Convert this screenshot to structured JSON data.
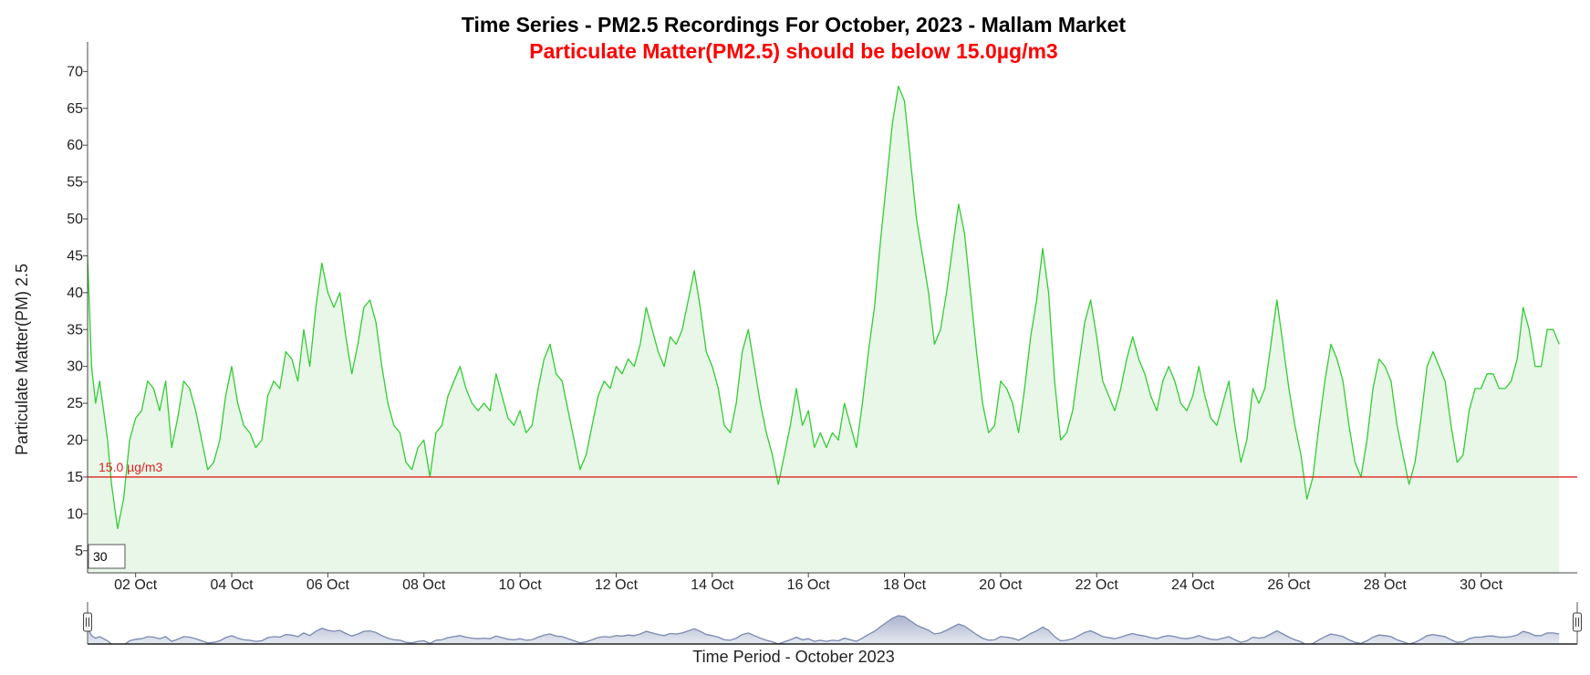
{
  "chart_data": {
    "type": "area",
    "title": "Time Series - PM2.5 Recordings For October, 2023 - Mallam Market",
    "subtitle": "Particulate Matter(PM2.5) should be below 15.0µg/m3",
    "xlabel": "Time Period - October 2023",
    "ylabel": "Particulate Matter(PM) 2.5",
    "x_start": "2023-10-01",
    "x_end": "2023-11-01",
    "x_ticks": [
      "02 Oct",
      "04 Oct",
      "06 Oct",
      "08 Oct",
      "10 Oct",
      "12 Oct",
      "14 Oct",
      "16 Oct",
      "18 Oct",
      "20 Oct",
      "22 Oct",
      "24 Oct",
      "26 Oct",
      "28 Oct",
      "30 Oct"
    ],
    "y_ticks": [
      5,
      10,
      15,
      20,
      25,
      30,
      35,
      40,
      45,
      50,
      55,
      60,
      65,
      70
    ],
    "ylim": [
      2,
      74
    ],
    "grid": false,
    "threshold": {
      "value": 15.0,
      "label": "15.0 µg/m3",
      "color": "#dd2222"
    },
    "rolling_period": "30",
    "series": [
      {
        "color": "#33cc33",
        "fill": "#e8f7e8",
        "points": [
          [
            "2023-10-01T00:00",
            45
          ],
          [
            "2023-10-01T02:00",
            30
          ],
          [
            "2023-10-01T04:00",
            25
          ],
          [
            "2023-10-01T06:00",
            28
          ],
          [
            "2023-10-01T08:00",
            24
          ],
          [
            "2023-10-01T10:00",
            20
          ],
          [
            "2023-10-01T12:00",
            14
          ],
          [
            "2023-10-01T15:00",
            8
          ],
          [
            "2023-10-01T18:00",
            12
          ],
          [
            "2023-10-01T21:00",
            20
          ],
          [
            "2023-10-02T00:00",
            23
          ],
          [
            "2023-10-02T03:00",
            24
          ],
          [
            "2023-10-02T06:00",
            28
          ],
          [
            "2023-10-02T09:00",
            27
          ],
          [
            "2023-10-02T12:00",
            24
          ],
          [
            "2023-10-02T15:00",
            28
          ],
          [
            "2023-10-02T18:00",
            19
          ],
          [
            "2023-10-02T21:00",
            23
          ],
          [
            "2023-10-03T00:00",
            28
          ],
          [
            "2023-10-03T03:00",
            27
          ],
          [
            "2023-10-03T06:00",
            24
          ],
          [
            "2023-10-03T09:00",
            20
          ],
          [
            "2023-10-03T12:00",
            16
          ],
          [
            "2023-10-03T15:00",
            17
          ],
          [
            "2023-10-03T18:00",
            20
          ],
          [
            "2023-10-03T21:00",
            26
          ],
          [
            "2023-10-04T00:00",
            30
          ],
          [
            "2023-10-04T03:00",
            25
          ],
          [
            "2023-10-04T06:00",
            22
          ],
          [
            "2023-10-04T09:00",
            21
          ],
          [
            "2023-10-04T12:00",
            19
          ],
          [
            "2023-10-04T15:00",
            20
          ],
          [
            "2023-10-04T18:00",
            26
          ],
          [
            "2023-10-04T21:00",
            28
          ],
          [
            "2023-10-05T00:00",
            27
          ],
          [
            "2023-10-05T03:00",
            32
          ],
          [
            "2023-10-05T06:00",
            31
          ],
          [
            "2023-10-05T09:00",
            28
          ],
          [
            "2023-10-05T12:00",
            35
          ],
          [
            "2023-10-05T15:00",
            30
          ],
          [
            "2023-10-05T18:00",
            38
          ],
          [
            "2023-10-05T21:00",
            44
          ],
          [
            "2023-10-06T00:00",
            40
          ],
          [
            "2023-10-06T03:00",
            38
          ],
          [
            "2023-10-06T06:00",
            40
          ],
          [
            "2023-10-06T09:00",
            34
          ],
          [
            "2023-10-06T12:00",
            29
          ],
          [
            "2023-10-06T15:00",
            33
          ],
          [
            "2023-10-06T18:00",
            38
          ],
          [
            "2023-10-06T21:00",
            39
          ],
          [
            "2023-10-07T00:00",
            36
          ],
          [
            "2023-10-07T03:00",
            30
          ],
          [
            "2023-10-07T06:00",
            25
          ],
          [
            "2023-10-07T09:00",
            22
          ],
          [
            "2023-10-07T12:00",
            21
          ],
          [
            "2023-10-07T15:00",
            17
          ],
          [
            "2023-10-07T18:00",
            16
          ],
          [
            "2023-10-07T21:00",
            19
          ],
          [
            "2023-10-08T00:00",
            20
          ],
          [
            "2023-10-08T03:00",
            15
          ],
          [
            "2023-10-08T06:00",
            21
          ],
          [
            "2023-10-08T09:00",
            22
          ],
          [
            "2023-10-08T12:00",
            26
          ],
          [
            "2023-10-08T15:00",
            28
          ],
          [
            "2023-10-08T18:00",
            30
          ],
          [
            "2023-10-08T21:00",
            27
          ],
          [
            "2023-10-09T00:00",
            25
          ],
          [
            "2023-10-09T03:00",
            24
          ],
          [
            "2023-10-09T06:00",
            25
          ],
          [
            "2023-10-09T09:00",
            24
          ],
          [
            "2023-10-09T12:00",
            29
          ],
          [
            "2023-10-09T15:00",
            26
          ],
          [
            "2023-10-09T18:00",
            23
          ],
          [
            "2023-10-09T21:00",
            22
          ],
          [
            "2023-10-10T00:00",
            24
          ],
          [
            "2023-10-10T03:00",
            21
          ],
          [
            "2023-10-10T06:00",
            22
          ],
          [
            "2023-10-10T09:00",
            27
          ],
          [
            "2023-10-10T12:00",
            31
          ],
          [
            "2023-10-10T15:00",
            33
          ],
          [
            "2023-10-10T18:00",
            29
          ],
          [
            "2023-10-10T21:00",
            28
          ],
          [
            "2023-10-11T00:00",
            24
          ],
          [
            "2023-10-11T03:00",
            20
          ],
          [
            "2023-10-11T06:00",
            16
          ],
          [
            "2023-10-11T09:00",
            18
          ],
          [
            "2023-10-11T12:00",
            22
          ],
          [
            "2023-10-11T15:00",
            26
          ],
          [
            "2023-10-11T18:00",
            28
          ],
          [
            "2023-10-11T21:00",
            27
          ],
          [
            "2023-10-12T00:00",
            30
          ],
          [
            "2023-10-12T03:00",
            29
          ],
          [
            "2023-10-12T06:00",
            31
          ],
          [
            "2023-10-12T09:00",
            30
          ],
          [
            "2023-10-12T12:00",
            33
          ],
          [
            "2023-10-12T15:00",
            38
          ],
          [
            "2023-10-12T18:00",
            35
          ],
          [
            "2023-10-12T21:00",
            32
          ],
          [
            "2023-10-13T00:00",
            30
          ],
          [
            "2023-10-13T03:00",
            34
          ],
          [
            "2023-10-13T06:00",
            33
          ],
          [
            "2023-10-13T09:00",
            35
          ],
          [
            "2023-10-13T12:00",
            39
          ],
          [
            "2023-10-13T15:00",
            43
          ],
          [
            "2023-10-13T18:00",
            38
          ],
          [
            "2023-10-13T21:00",
            32
          ],
          [
            "2023-10-14T00:00",
            30
          ],
          [
            "2023-10-14T03:00",
            27
          ],
          [
            "2023-10-14T06:00",
            22
          ],
          [
            "2023-10-14T09:00",
            21
          ],
          [
            "2023-10-14T12:00",
            25
          ],
          [
            "2023-10-14T15:00",
            32
          ],
          [
            "2023-10-14T18:00",
            35
          ],
          [
            "2023-10-14T21:00",
            30
          ],
          [
            "2023-10-15T00:00",
            25
          ],
          [
            "2023-10-15T03:00",
            21
          ],
          [
            "2023-10-15T06:00",
            18
          ],
          [
            "2023-10-15T09:00",
            14
          ],
          [
            "2023-10-15T12:00",
            18
          ],
          [
            "2023-10-15T15:00",
            22
          ],
          [
            "2023-10-15T18:00",
            27
          ],
          [
            "2023-10-15T21:00",
            22
          ],
          [
            "2023-10-16T00:00",
            24
          ],
          [
            "2023-10-16T03:00",
            19
          ],
          [
            "2023-10-16T06:00",
            21
          ],
          [
            "2023-10-16T09:00",
            19
          ],
          [
            "2023-10-16T12:00",
            21
          ],
          [
            "2023-10-16T15:00",
            20
          ],
          [
            "2023-10-16T18:00",
            25
          ],
          [
            "2023-10-16T21:00",
            22
          ],
          [
            "2023-10-17T00:00",
            19
          ],
          [
            "2023-10-17T03:00",
            25
          ],
          [
            "2023-10-17T06:00",
            32
          ],
          [
            "2023-10-17T09:00",
            38
          ],
          [
            "2023-10-17T12:00",
            47
          ],
          [
            "2023-10-17T15:00",
            55
          ],
          [
            "2023-10-17T18:00",
            63
          ],
          [
            "2023-10-17T21:00",
            68
          ],
          [
            "2023-10-18T00:00",
            66
          ],
          [
            "2023-10-18T03:00",
            58
          ],
          [
            "2023-10-18T06:00",
            50
          ],
          [
            "2023-10-18T09:00",
            45
          ],
          [
            "2023-10-18T12:00",
            40
          ],
          [
            "2023-10-18T15:00",
            33
          ],
          [
            "2023-10-18T18:00",
            35
          ],
          [
            "2023-10-18T21:00",
            40
          ],
          [
            "2023-10-19T00:00",
            46
          ],
          [
            "2023-10-19T03:00",
            52
          ],
          [
            "2023-10-19T06:00",
            48
          ],
          [
            "2023-10-19T09:00",
            40
          ],
          [
            "2023-10-19T12:00",
            32
          ],
          [
            "2023-10-19T15:00",
            25
          ],
          [
            "2023-10-19T18:00",
            21
          ],
          [
            "2023-10-19T21:00",
            22
          ],
          [
            "2023-10-20T00:00",
            28
          ],
          [
            "2023-10-20T03:00",
            27
          ],
          [
            "2023-10-20T06:00",
            25
          ],
          [
            "2023-10-20T09:00",
            21
          ],
          [
            "2023-10-20T12:00",
            27
          ],
          [
            "2023-10-20T15:00",
            34
          ],
          [
            "2023-10-20T18:00",
            39
          ],
          [
            "2023-10-20T21:00",
            46
          ],
          [
            "2023-10-21T00:00",
            40
          ],
          [
            "2023-10-21T03:00",
            28
          ],
          [
            "2023-10-21T06:00",
            20
          ],
          [
            "2023-10-21T09:00",
            21
          ],
          [
            "2023-10-21T12:00",
            24
          ],
          [
            "2023-10-21T15:00",
            30
          ],
          [
            "2023-10-21T18:00",
            36
          ],
          [
            "2023-10-21T21:00",
            39
          ],
          [
            "2023-10-22T00:00",
            34
          ],
          [
            "2023-10-22T03:00",
            28
          ],
          [
            "2023-10-22T06:00",
            26
          ],
          [
            "2023-10-22T09:00",
            24
          ],
          [
            "2023-10-22T12:00",
            27
          ],
          [
            "2023-10-22T15:00",
            31
          ],
          [
            "2023-10-22T18:00",
            34
          ],
          [
            "2023-10-22T21:00",
            31
          ],
          [
            "2023-10-23T00:00",
            29
          ],
          [
            "2023-10-23T03:00",
            26
          ],
          [
            "2023-10-23T06:00",
            24
          ],
          [
            "2023-10-23T09:00",
            28
          ],
          [
            "2023-10-23T12:00",
            30
          ],
          [
            "2023-10-23T15:00",
            28
          ],
          [
            "2023-10-23T18:00",
            25
          ],
          [
            "2023-10-23T21:00",
            24
          ],
          [
            "2023-10-24T00:00",
            26
          ],
          [
            "2023-10-24T03:00",
            30
          ],
          [
            "2023-10-24T06:00",
            26
          ],
          [
            "2023-10-24T09:00",
            23
          ],
          [
            "2023-10-24T12:00",
            22
          ],
          [
            "2023-10-24T15:00",
            25
          ],
          [
            "2023-10-24T18:00",
            28
          ],
          [
            "2023-10-24T21:00",
            22
          ],
          [
            "2023-10-25T00:00",
            17
          ],
          [
            "2023-10-25T03:00",
            20
          ],
          [
            "2023-10-25T06:00",
            27
          ],
          [
            "2023-10-25T09:00",
            25
          ],
          [
            "2023-10-25T12:00",
            27
          ],
          [
            "2023-10-25T15:00",
            33
          ],
          [
            "2023-10-25T18:00",
            39
          ],
          [
            "2023-10-25T21:00",
            33
          ],
          [
            "2023-10-26T00:00",
            27
          ],
          [
            "2023-10-26T03:00",
            22
          ],
          [
            "2023-10-26T06:00",
            18
          ],
          [
            "2023-10-26T09:00",
            12
          ],
          [
            "2023-10-26T12:00",
            15
          ],
          [
            "2023-10-26T15:00",
            22
          ],
          [
            "2023-10-26T18:00",
            28
          ],
          [
            "2023-10-26T21:00",
            33
          ],
          [
            "2023-10-27T00:00",
            31
          ],
          [
            "2023-10-27T03:00",
            28
          ],
          [
            "2023-10-27T06:00",
            22
          ],
          [
            "2023-10-27T09:00",
            17
          ],
          [
            "2023-10-27T12:00",
            15
          ],
          [
            "2023-10-27T15:00",
            20
          ],
          [
            "2023-10-27T18:00",
            27
          ],
          [
            "2023-10-27T21:00",
            31
          ],
          [
            "2023-10-28T00:00",
            30
          ],
          [
            "2023-10-28T03:00",
            28
          ],
          [
            "2023-10-28T06:00",
            22
          ],
          [
            "2023-10-28T09:00",
            18
          ],
          [
            "2023-10-28T12:00",
            14
          ],
          [
            "2023-10-28T15:00",
            17
          ],
          [
            "2023-10-28T18:00",
            23
          ],
          [
            "2023-10-28T21:00",
            30
          ],
          [
            "2023-10-29T00:00",
            32
          ],
          [
            "2023-10-29T03:00",
            30
          ],
          [
            "2023-10-29T06:00",
            28
          ],
          [
            "2023-10-29T09:00",
            22
          ],
          [
            "2023-10-29T12:00",
            17
          ],
          [
            "2023-10-29T15:00",
            18
          ],
          [
            "2023-10-29T18:00",
            24
          ],
          [
            "2023-10-29T21:00",
            27
          ],
          [
            "2023-10-30T00:00",
            27
          ],
          [
            "2023-10-30T03:00",
            29
          ],
          [
            "2023-10-30T06:00",
            29
          ],
          [
            "2023-10-30T09:00",
            27
          ],
          [
            "2023-10-30T12:00",
            27
          ],
          [
            "2023-10-30T15:00",
            28
          ],
          [
            "2023-10-30T18:00",
            31
          ],
          [
            "2023-10-30T21:00",
            38
          ],
          [
            "2023-10-31T00:00",
            35
          ],
          [
            "2023-10-31T03:00",
            30
          ],
          [
            "2023-10-31T06:00",
            30
          ],
          [
            "2023-10-31T09:00",
            35
          ],
          [
            "2023-10-31T12:00",
            35
          ],
          [
            "2023-10-31T15:00",
            33
          ]
        ]
      }
    ]
  },
  "navigator": {
    "line_color": "#7a8ab0",
    "fill_color": "#c8cfe0"
  },
  "colors": {
    "line": "#33cc33",
    "area": "#e8f7e8",
    "threshold": "#dd2222",
    "axis": "#333333"
  }
}
